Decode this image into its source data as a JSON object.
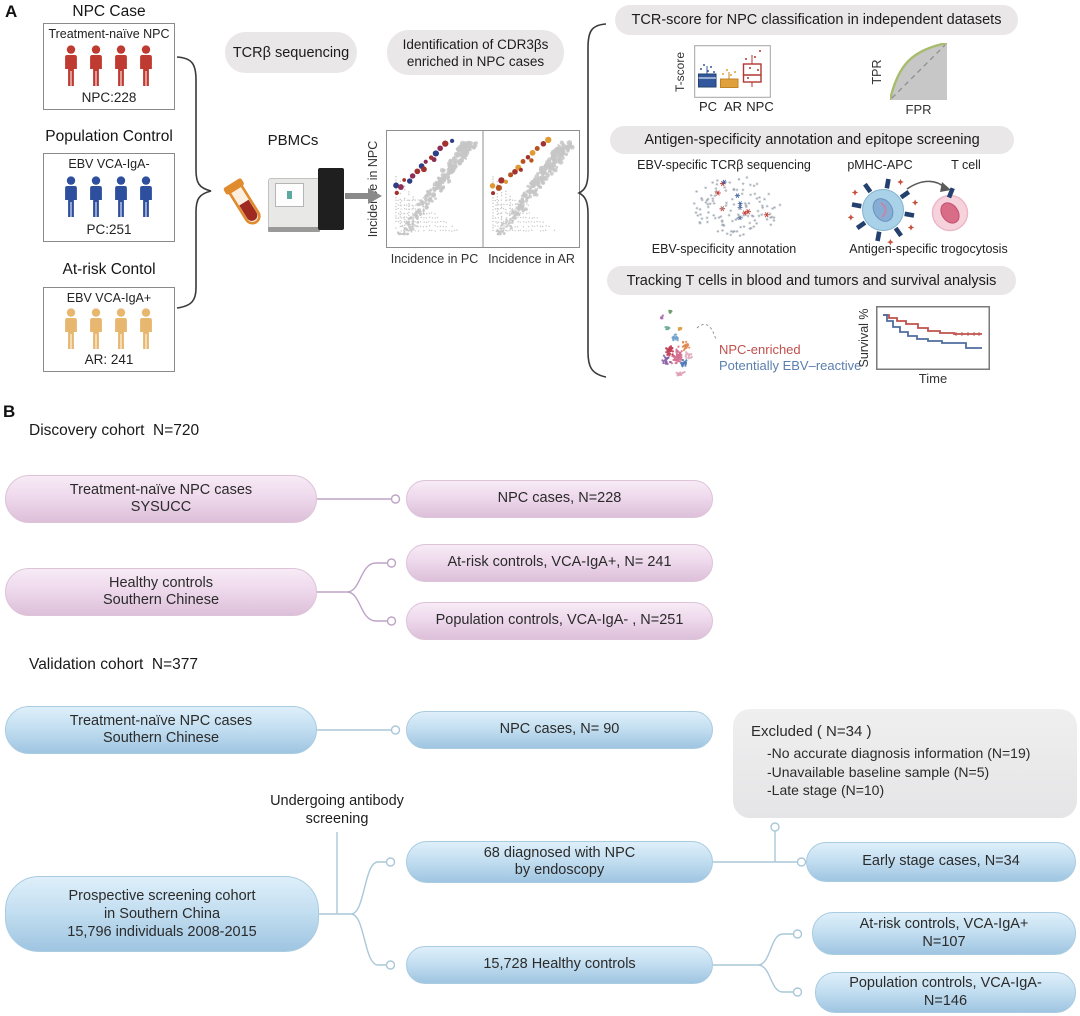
{
  "panelA": {
    "label": "A",
    "cohorts": [
      {
        "title": "NPC Case",
        "subtitle": "Treatment-naïve NPC",
        "count": "NPC:228"
      },
      {
        "title": "Population Control",
        "subtitle": "EBV VCA-IgA-",
        "count": "PC:251"
      },
      {
        "title": "At-risk Contol",
        "subtitle": "EBV VCA-IgA+",
        "count": "AR: 241"
      }
    ],
    "tcrb_pill": "TCRβ sequencing",
    "pbmcs": "PBMCs",
    "ident_line1": "Identification of CDR3βs",
    "ident_line2": "enriched in NPC cases",
    "scatter": {
      "ylabel": "Incidence in NPC",
      "x_left": "Incidence in PC",
      "x_right": "Incidence in AR"
    },
    "sec1": {
      "title": "TCR-score for NPC classification in independent datasets",
      "box_ylabel": "T-score",
      "box_cats": [
        "PC",
        "AR",
        "NPC"
      ],
      "roc_ylabel": "TPR",
      "roc_xlabel": "FPR"
    },
    "sec2": {
      "title": "Antigen-specificity annotation and epitope screening",
      "seq_label": "EBV-specific TCRβ sequencing",
      "pmhc_label": "pMHC-APC",
      "tcell_label": "T cell",
      "annot_label": "EBV-specificity annotation",
      "trogo_label": "Antigen-specific trogocytosis"
    },
    "sec3": {
      "title": "Tracking T cells in blood and tumors and survival analysis",
      "legend_red": "NPC-enriched",
      "legend_blue": "Potentially EBV–reactive",
      "surv_ylabel": "Survival %",
      "surv_xlabel": "Time"
    }
  },
  "panelB": {
    "label": "B",
    "discovery_title": "Discovery cohort  N=720",
    "validation_title": "Validation cohort  N=377",
    "boxes": {
      "disc_left1": "Treatment-naïve NPC cases",
      "disc_left2": "SYSUCC",
      "disc_right": "NPC cases, N=228",
      "healthy_left1": "Healthy controls",
      "healthy_left2": "Southern Chinese",
      "atrisk_right": "At-risk controls, VCA-IgA+, N= 241",
      "pop_right": "Population controls, VCA-IgA- , N=251",
      "val_left1": "Treatment-naïve NPC cases",
      "val_left2": "Southern Chinese",
      "val_right": "NPC cases, N= 90",
      "prospective1": "Prospective screening cohort",
      "prospective2": "in Southern China",
      "prospective3": "15,796 individuals 2008-2015",
      "diagnosed1": "68 diagnosed with NPC",
      "diagnosed2": "by endoscopy",
      "healthy15728": "15,728 Healthy controls",
      "early": "Early stage cases, N=34",
      "atrisk107_1": "At-risk controls, VCA-IgA+",
      "atrisk107_2": "N=107",
      "pop146_1": "Population controls, VCA-IgA-",
      "pop146_2": "N=146"
    },
    "excluded": {
      "title": "Excluded ( N=34 )",
      "items": [
        "-No accurate diagnosis information (N=19)",
        "-Unavailable baseline sample (N=5)",
        "-Late stage (N=10)"
      ]
    },
    "antibody_label1": "Undergoing antibody",
    "antibody_label2": "screening"
  },
  "colors": {
    "npc_red": "#bf3a31",
    "pc_blue": "#2d4f9e",
    "ar_tan": "#e7b76f",
    "pink_box": "#eed9ec",
    "blue_box": "#c4dff1",
    "pink_connector": "#bfa3c6",
    "blue_connector": "#a9c7d9",
    "legend_red": "#c0504c",
    "legend_blue": "#5b7fae",
    "roc_curve_green": "#a6bd6e"
  }
}
